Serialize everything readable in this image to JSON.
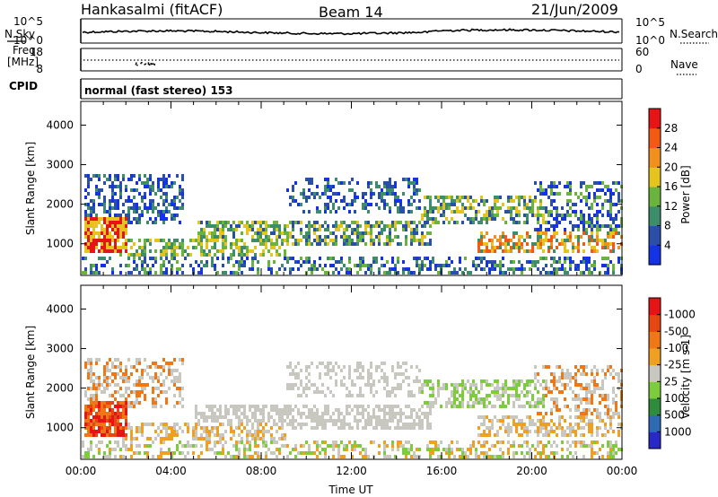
{
  "header": {
    "station": "Hankasalmi (fitACF)",
    "beam": "Beam 14",
    "date": "21/Jun/2009"
  },
  "nsky_panel": {
    "left_label": "N.Sky",
    "left_ticks": [
      "10^5",
      "10^0"
    ],
    "right_label": "N.Search",
    "right_ticks": [
      "10^5",
      "10^0"
    ]
  },
  "freq_panel": {
    "left_label_1": "Freq.",
    "left_label_2": "[MHz]",
    "left_ticks": [
      "18",
      "8"
    ],
    "right_label": "Nave",
    "right_ticks": [
      "60",
      "0"
    ]
  },
  "cpid_panel": {
    "label": "CPID",
    "mode": "normal (fast stereo) 153"
  },
  "chart_data": [
    {
      "type": "heatmap",
      "name": "power",
      "ylabel": "Slant Range [km]",
      "yticks": [
        1000,
        2000,
        3000,
        4000
      ],
      "ylim": [
        200,
        4600
      ],
      "colorbar": {
        "label": "Power [dB]",
        "ticks": [
          "4",
          "8",
          "12",
          "16",
          "20",
          "24",
          "28"
        ],
        "colors": [
          "#1432e6",
          "#2a4fa8",
          "#3d8c6a",
          "#6ab33c",
          "#e6c41e",
          "#f0901e",
          "#f25a14",
          "#e61414"
        ]
      }
    },
    {
      "type": "heatmap",
      "name": "velocity",
      "ylabel": "Slant Range [km]",
      "yticks": [
        1000,
        2000,
        3000,
        4000
      ],
      "ylim": [
        200,
        4600
      ],
      "xticks": [
        "00:00",
        "04:00",
        "08:00",
        "12:00",
        "16:00",
        "20:00",
        "00:00"
      ],
      "xlabel": "Time UT",
      "colorbar": {
        "label": "Velocity [m s-1]",
        "ticks": [
          "1000",
          "500",
          "100",
          "25",
          "-25",
          "-100",
          "-500",
          "-1000"
        ],
        "colors": [
          "#2828c8",
          "#2e6ab4",
          "#2e8c3c",
          "#7ccc3c",
          "#c8c8c0",
          "#f0a020",
          "#f07814",
          "#e64614",
          "#e61414"
        ]
      }
    }
  ]
}
